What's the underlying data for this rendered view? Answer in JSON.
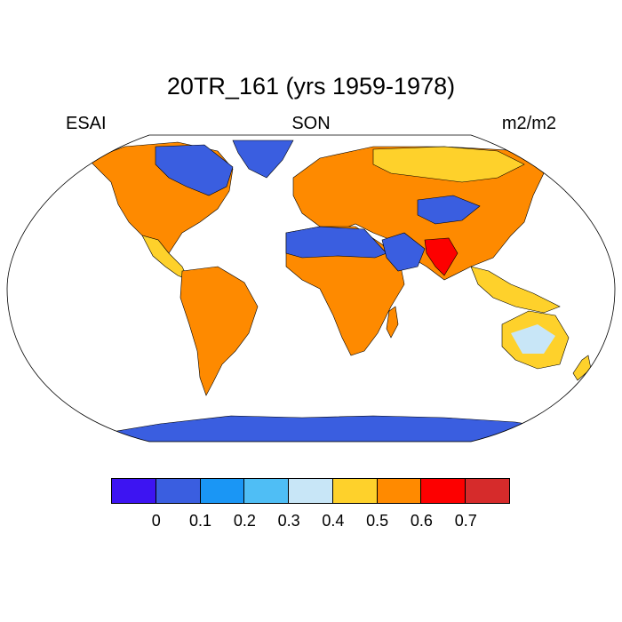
{
  "title": "20TR_161 (yrs 1959-1978)",
  "left_label": "ESAI",
  "center_label": "SON",
  "right_label": "m2/m2",
  "colorbar": {
    "colors": [
      "#3d14f2",
      "#3a5ee0",
      "#1a96f5",
      "#4fbef5",
      "#c8e6f7",
      "#fed12b",
      "#ff8a00",
      "#fd0000",
      "#d62b2b"
    ],
    "tick_labels": [
      "0",
      "0.1",
      "0.2",
      "0.3",
      "0.4",
      "0.5",
      "0.6",
      "0.7"
    ]
  },
  "map": {
    "projection": "robinson",
    "ocean_color": "#ffffff",
    "coastline_color": "#000000"
  }
}
